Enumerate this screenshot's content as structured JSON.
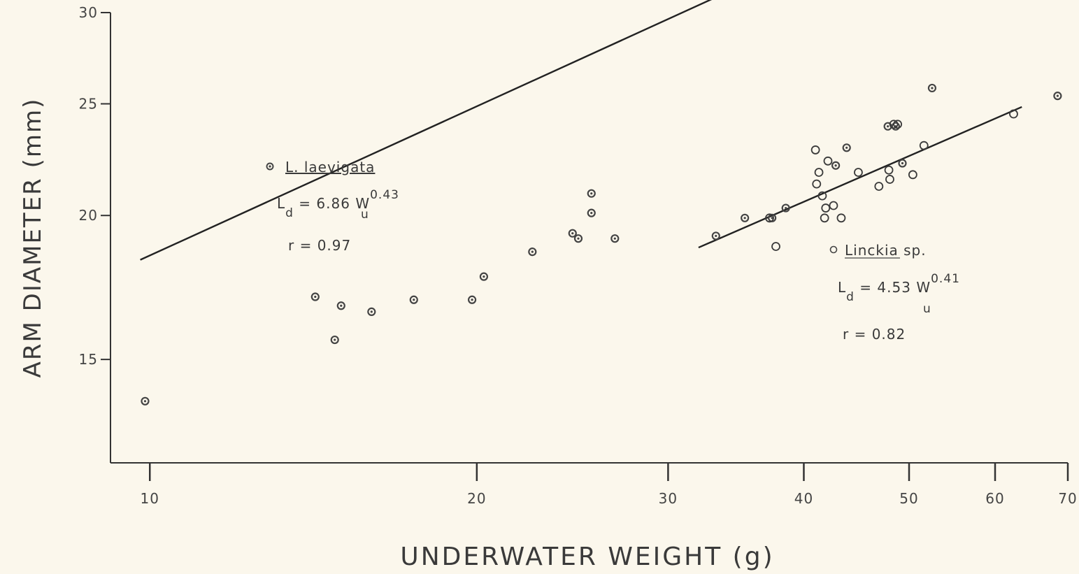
{
  "chart_data": {
    "type": "scatter",
    "xlabel": "UNDERWATER WEIGHT (g)",
    "ylabel": "ARM DIAMETER (mm)",
    "x_scale": "log",
    "y_scale": "log",
    "xlim": [
      9.2,
      70
    ],
    "ylim": [
      12.2,
      30
    ],
    "x_ticks": [
      10,
      20,
      30,
      40,
      50,
      60,
      70
    ],
    "y_ticks": [
      15,
      20,
      25,
      30
    ],
    "grid": false,
    "series": [
      {
        "name": "L. laevigata",
        "marker": "dotted-circle",
        "equation": {
          "prefix": "L",
          "prefix_sub": "d",
          "rest": " = 6.86 W",
          "base_sub": "u",
          "exponent": "0.43"
        },
        "r_text": "r = 0.97",
        "fit": {
          "a": 6.86,
          "b": 0.43,
          "x_range": [
            9.8,
            70
          ]
        },
        "points": [
          [
            9.9,
            13.8
          ],
          [
            14.2,
            17.0
          ],
          [
            15.0,
            16.7
          ],
          [
            14.8,
            15.6
          ],
          [
            16.0,
            16.5
          ],
          [
            17.5,
            16.9
          ],
          [
            19.8,
            16.9
          ],
          [
            20.3,
            17.7
          ],
          [
            22.5,
            18.6
          ],
          [
            24.5,
            19.3
          ],
          [
            24.8,
            19.1
          ],
          [
            25.5,
            20.9
          ],
          [
            25.5,
            20.1
          ],
          [
            26.8,
            19.1
          ],
          [
            33.2,
            19.2
          ],
          [
            35.3,
            19.9
          ],
          [
            37.4,
            19.9
          ],
          [
            38.5,
            20.3
          ],
          [
            42.8,
            22.1
          ],
          [
            43.8,
            22.9
          ],
          [
            47.8,
            23.9
          ],
          [
            48.6,
            23.9
          ],
          [
            49.3,
            22.2
          ],
          [
            52.5,
            25.8
          ],
          [
            68.5,
            25.4
          ]
        ]
      },
      {
        "name": "Linckia sp.",
        "marker": "open-circle",
        "equation": {
          "prefix": "L",
          "prefix_sub": "d",
          "rest": " = 4.53 W",
          "base_sub": "u",
          "exponent": "0.41"
        },
        "r_text": "r = 0.82",
        "fit": {
          "a": 4.53,
          "b": 0.41,
          "x_range": [
            32,
            63.5
          ]
        },
        "points": [
          [
            37.2,
            19.9
          ],
          [
            37.7,
            18.8
          ],
          [
            41.0,
            22.8
          ],
          [
            41.3,
            21.8
          ],
          [
            41.1,
            21.3
          ],
          [
            41.6,
            20.8
          ],
          [
            41.9,
            20.3
          ],
          [
            41.8,
            19.9
          ],
          [
            42.1,
            22.3
          ],
          [
            42.6,
            20.4
          ],
          [
            43.3,
            19.9
          ],
          [
            44.9,
            21.8
          ],
          [
            46.9,
            21.2
          ],
          [
            47.9,
            21.9
          ],
          [
            48.0,
            21.5
          ],
          [
            48.4,
            24.0
          ],
          [
            48.8,
            24.0
          ],
          [
            50.4,
            21.7
          ],
          [
            51.6,
            23.0
          ],
          [
            62.4,
            24.5
          ]
        ]
      }
    ]
  }
}
